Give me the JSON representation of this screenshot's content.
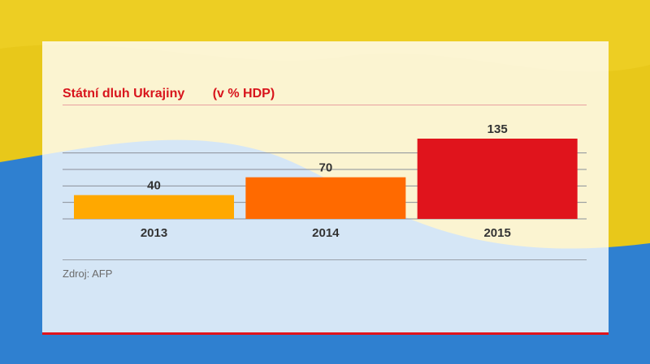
{
  "chart_data": {
    "type": "bar",
    "title": "Státní dluh Ukrajiny",
    "unit": "(v % HDP)",
    "categories": [
      "2013",
      "2014",
      "2015"
    ],
    "values": [
      40,
      70,
      135
    ],
    "value_labels": [
      "40",
      "70",
      "135"
    ],
    "colors": [
      "#ffa800",
      "#ff6a00",
      "#e0141c"
    ],
    "ylim": [
      0,
      150
    ],
    "grid": true,
    "source": "Zdroj: AFP"
  }
}
